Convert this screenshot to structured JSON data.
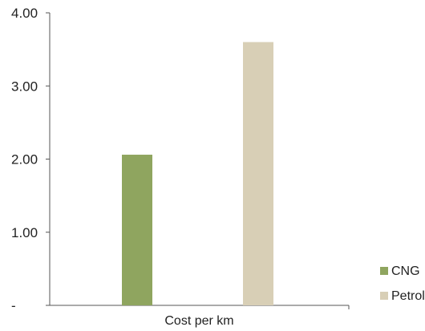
{
  "chart_data": {
    "type": "bar",
    "title": "",
    "xlabel": "",
    "ylabel": "",
    "ylim": [
      0,
      4
    ],
    "yticks": [
      {
        "value": 0,
        "label": "-"
      },
      {
        "value": 1,
        "label": "1.00"
      },
      {
        "value": 2,
        "label": "2.00"
      },
      {
        "value": 3,
        "label": "3.00"
      },
      {
        "value": 4,
        "label": "4.00"
      }
    ],
    "categories": [
      "Cost per km"
    ],
    "series": [
      {
        "name": "CNG",
        "values": [
          2.06
        ],
        "color": "#8fa55f"
      },
      {
        "name": "Petrol",
        "values": [
          3.6
        ],
        "color": "#d8cfb6"
      }
    ],
    "legend": "right",
    "grid": false
  }
}
